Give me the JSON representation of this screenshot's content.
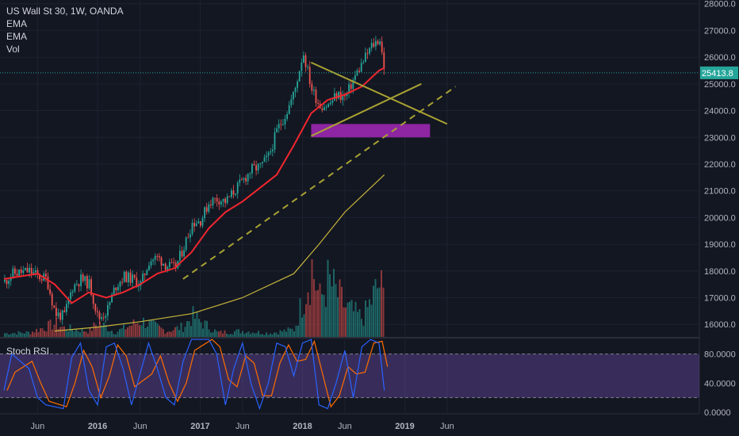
{
  "header": {
    "symbol": "US Wall St 30, 1W, OANDA",
    "indicators": [
      "EMA",
      "EMA",
      "Vol"
    ]
  },
  "chart_data": [
    {
      "type": "candlestick",
      "title": "US Wall St 30, 1W, OANDA",
      "ylim": [
        15700,
        28200
      ],
      "y_ticks": [
        "28000.0",
        "27000.0",
        "26000.0",
        "25000.0",
        "24000.0",
        "23000.0",
        "22000.0",
        "21000.0",
        "20000.0",
        "19000.0",
        "18000.0",
        "17000.0",
        "16000.0"
      ],
      "x_ticks": [
        "Jun",
        "2016",
        "Jun",
        "2017",
        "Jun",
        "2018",
        "Jun",
        "2019",
        "Jun"
      ],
      "last_price": "25413.8",
      "price_path": [
        [
          "2015-02",
          17600
        ],
        [
          "2015-03",
          17900
        ],
        [
          "2015-05",
          18000
        ],
        [
          "2015-06",
          17800
        ],
        [
          "2015-07",
          17700
        ],
        [
          "2015-08",
          16400
        ],
        [
          "2015-09",
          16300
        ],
        [
          "2015-10",
          17400
        ],
        [
          "2015-11",
          17700
        ],
        [
          "2015-12",
          17500
        ],
        [
          "2016-01",
          16200
        ],
        [
          "2016-02",
          16500
        ],
        [
          "2016-03",
          17400
        ],
        [
          "2016-04",
          17800
        ],
        [
          "2016-05",
          17700
        ],
        [
          "2016-06",
          17500
        ],
        [
          "2016-07",
          18400
        ],
        [
          "2016-08",
          18500
        ],
        [
          "2016-09",
          18200
        ],
        [
          "2016-10",
          18100
        ],
        [
          "2016-11",
          18900
        ],
        [
          "2016-12",
          19800
        ],
        [
          "2017-01",
          19900
        ],
        [
          "2017-02",
          20600
        ],
        [
          "2017-03",
          20700
        ],
        [
          "2017-04",
          20600
        ],
        [
          "2017-05",
          21000
        ],
        [
          "2017-06",
          21400
        ],
        [
          "2017-07",
          21800
        ],
        [
          "2017-08",
          21900
        ],
        [
          "2017-09",
          22300
        ],
        [
          "2017-10",
          23300
        ],
        [
          "2017-11",
          23900
        ],
        [
          "2017-12",
          24700
        ],
        [
          "2018-01",
          26200
        ],
        [
          "2018-02",
          24800
        ],
        [
          "2018-03",
          24200
        ],
        [
          "2018-04",
          24200
        ],
        [
          "2018-05",
          24600
        ],
        [
          "2018-06",
          24500
        ],
        [
          "2018-07",
          25200
        ],
        [
          "2018-08",
          25800
        ],
        [
          "2018-09",
          26400
        ],
        [
          "2018-10",
          26700
        ],
        [
          "2018-10-20",
          25414
        ]
      ],
      "ema_fast": [
        [
          "2015-02",
          17700
        ],
        [
          "2015-06",
          17900
        ],
        [
          "2015-08",
          17500
        ],
        [
          "2015-10",
          16800
        ],
        [
          "2015-12",
          17200
        ],
        [
          "2016-02",
          17000
        ],
        [
          "2016-04",
          17200
        ],
        [
          "2016-06",
          17500
        ],
        [
          "2016-08",
          17900
        ],
        [
          "2016-10",
          18100
        ],
        [
          "2016-12",
          18700
        ],
        [
          "2017-02",
          19600
        ],
        [
          "2017-04",
          20200
        ],
        [
          "2017-06",
          20600
        ],
        [
          "2017-08",
          21100
        ],
        [
          "2017-10",
          21600
        ],
        [
          "2017-12",
          22700
        ],
        [
          "2018-02",
          23900
        ],
        [
          "2018-04",
          24400
        ],
        [
          "2018-06",
          24600
        ],
        [
          "2018-08",
          24900
        ],
        [
          "2018-10",
          25500
        ],
        [
          "2018-10-20",
          25600
        ]
      ],
      "ema_slow": [
        [
          "2015-08",
          15750
        ],
        [
          "2016-01",
          15900
        ],
        [
          "2016-06",
          16100
        ],
        [
          "2016-12",
          16400
        ],
        [
          "2017-06",
          17000
        ],
        [
          "2017-12",
          17900
        ],
        [
          "2018-03",
          19000
        ],
        [
          "2018-06",
          20200
        ],
        [
          "2018-10-20",
          21600
        ]
      ],
      "trendlines": [
        {
          "name": "descending",
          "from": [
            "2018-02",
            25800
          ],
          "to": [
            "2019-06",
            23500
          ]
        },
        {
          "name": "ascending",
          "from": [
            "2018-02",
            23050
          ],
          "to": [
            "2019-03",
            25000
          ]
        },
        {
          "name": "long-term-support",
          "from": [
            "2016-11",
            17700
          ],
          "to": [
            "2019-07",
            24900
          ]
        }
      ],
      "zone": {
        "from": [
          "2018-02",
          23500
        ],
        "to": [
          "2019-04",
          23000
        ]
      },
      "volume": [
        [
          "2015-02",
          0.05
        ],
        [
          "2015-05",
          0.06
        ],
        [
          "2015-08",
          0.18
        ],
        [
          "2015-09",
          0.12
        ],
        [
          "2015-12",
          0.08
        ],
        [
          "2016-01",
          0.2
        ],
        [
          "2016-03",
          0.06
        ],
        [
          "2016-06",
          0.22
        ],
        [
          "2016-09",
          0.08
        ],
        [
          "2016-11",
          0.14
        ],
        [
          "2016-12",
          0.28
        ],
        [
          "2017-03",
          0.06
        ],
        [
          "2017-06",
          0.08
        ],
        [
          "2017-09",
          0.05
        ],
        [
          "2017-12",
          0.1
        ],
        [
          "2018-02",
          0.95
        ],
        [
          "2018-03",
          0.5
        ],
        [
          "2018-04",
          0.75
        ],
        [
          "2018-06",
          0.4
        ],
        [
          "2018-08",
          0.25
        ],
        [
          "2018-10",
          0.72
        ],
        [
          "2018-10-20",
          0.45
        ]
      ]
    },
    {
      "type": "line",
      "title": "Stoch RSI",
      "ylim": [
        0,
        100
      ],
      "y_ticks": [
        "80.0000",
        "40.0000",
        "0.0000"
      ],
      "upper_band": 80,
      "lower_band": 20,
      "k": [
        [
          "2015-02",
          30
        ],
        [
          "2015-03",
          80
        ],
        [
          "2015-05",
          60
        ],
        [
          "2015-06",
          20
        ],
        [
          "2015-07",
          10
        ],
        [
          "2015-09",
          5
        ],
        [
          "2015-10",
          75
        ],
        [
          "2015-11",
          95
        ],
        [
          "2015-12",
          30
        ],
        [
          "2016-01",
          10
        ],
        [
          "2016-02",
          90
        ],
        [
          "2016-03",
          95
        ],
        [
          "2016-04",
          60
        ],
        [
          "2016-05",
          10
        ],
        [
          "2016-07",
          95
        ],
        [
          "2016-08",
          60
        ],
        [
          "2016-09",
          20
        ],
        [
          "2016-10",
          10
        ],
        [
          "2016-11",
          70
        ],
        [
          "2016-12",
          100
        ],
        [
          "2017-02",
          100
        ],
        [
          "2017-03",
          80
        ],
        [
          "2017-04",
          10
        ],
        [
          "2017-05",
          60
        ],
        [
          "2017-06",
          95
        ],
        [
          "2017-07",
          40
        ],
        [
          "2017-08",
          5
        ],
        [
          "2017-09",
          40
        ],
        [
          "2017-10",
          95
        ],
        [
          "2017-11",
          90
        ],
        [
          "2017-12",
          50
        ],
        [
          "2018-01",
          95
        ],
        [
          "2018-02",
          100
        ],
        [
          "2018-03",
          10
        ],
        [
          "2018-04",
          5
        ],
        [
          "2018-05",
          40
        ],
        [
          "2018-06",
          85
        ],
        [
          "2018-07",
          20
        ],
        [
          "2018-08",
          90
        ],
        [
          "2018-09",
          100
        ],
        [
          "2018-10",
          95
        ],
        [
          "2018-10-20",
          30
        ]
      ]
    }
  ]
}
